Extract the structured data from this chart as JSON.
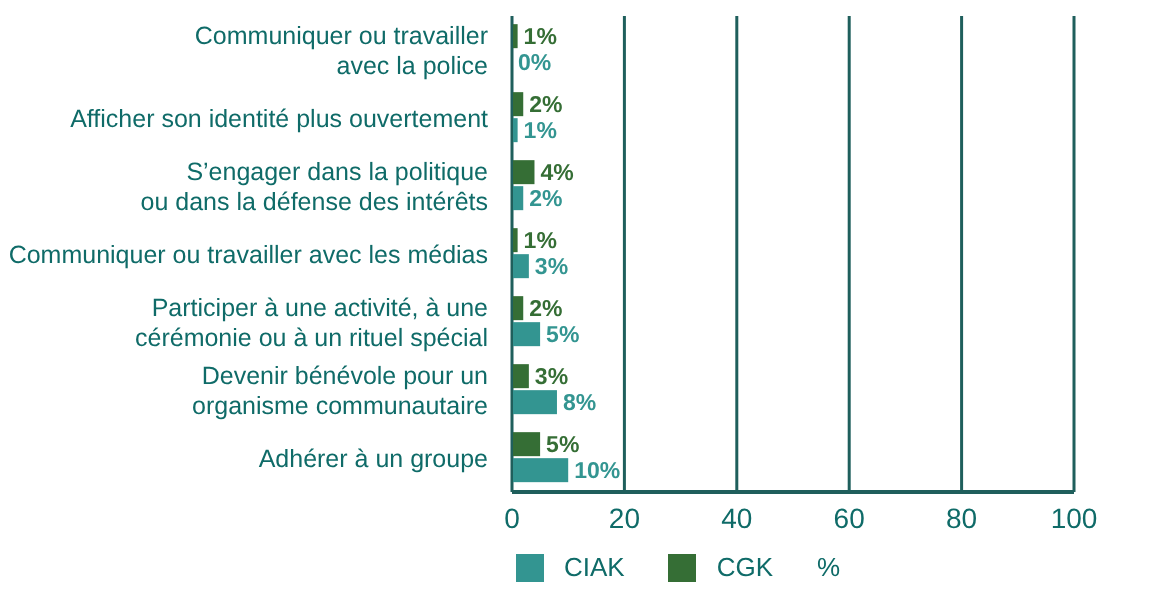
{
  "chart_data": {
    "type": "bar",
    "orientation": "horizontal",
    "xlabel": "%",
    "categories": [
      "Communiquer ou travailler\navec la police",
      "Afficher son identité plus ouvertement",
      "S’engager dans la politique\nou dans la défense des intérêts",
      "Communiquer ou travailler avec les médias",
      "Participer à une activité, à une\ncérémonie ou à un rituel spécial",
      "Devenir bénévole pour un\norganisme communautaire",
      "Adhérer à un groupe"
    ],
    "series": [
      {
        "name": "CIAK",
        "color": "#339591",
        "values": [
          0,
          1,
          2,
          3,
          5,
          8,
          10
        ],
        "value_labels": [
          "0%",
          "1%",
          "2%",
          "3%",
          "5%",
          "8%",
          "10%"
        ]
      },
      {
        "name": "CGK",
        "color": "#356e35",
        "values": [
          1,
          2,
          4,
          1,
          2,
          3,
          5
        ],
        "value_labels": [
          "1%",
          "2%",
          "4%",
          "1%",
          "2%",
          "3%",
          "5%"
        ]
      }
    ],
    "xlim": [
      0,
      100
    ],
    "xticks": [
      0,
      20,
      40,
      60,
      80,
      100
    ],
    "grid": "x",
    "legend": "bottom"
  }
}
